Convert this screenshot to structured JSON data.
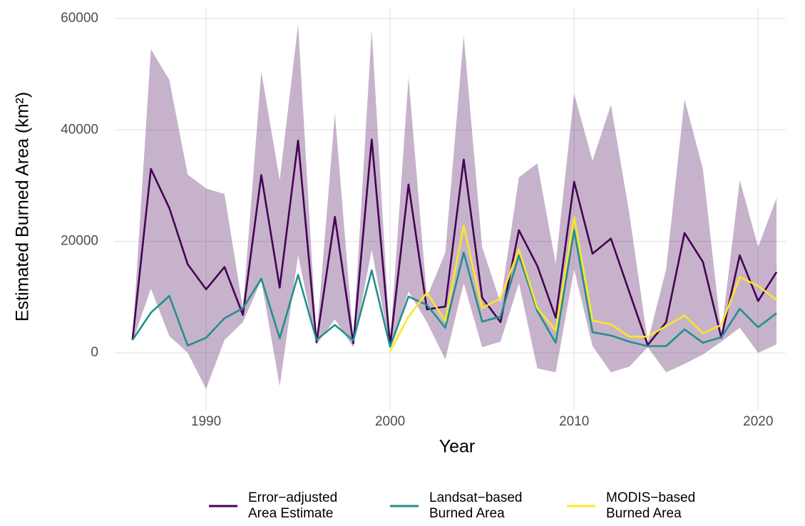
{
  "chart_data": {
    "type": "line",
    "x_label": "Year",
    "y_label": "Estimated Burned Area (km²)",
    "x": [
      1986,
      1987,
      1988,
      1989,
      1990,
      1991,
      1992,
      1993,
      1994,
      1995,
      1996,
      1997,
      1998,
      1999,
      2000,
      2001,
      2002,
      2003,
      2004,
      2005,
      2006,
      2007,
      2008,
      2009,
      2010,
      2011,
      2012,
      2013,
      2014,
      2015,
      2016,
      2017,
      2018,
      2019,
      2020,
      2021
    ],
    "xlim": [
      1985,
      2021.5
    ],
    "xticks": [
      1990,
      2000,
      2010,
      2020
    ],
    "ylim": [
      -10300,
      62000
    ],
    "yticks": [
      0,
      20000,
      40000,
      60000
    ],
    "grid": true,
    "legend": "bottom",
    "band": {
      "color": "#440154",
      "upper": [
        2600,
        54500,
        49000,
        32000,
        29500,
        28500,
        8000,
        50500,
        31000,
        59000,
        2500,
        43000,
        2500,
        58000,
        1800,
        49500,
        10000,
        18000,
        57000,
        19000,
        9000,
        31500,
        34000,
        16000,
        46500,
        34500,
        44500,
        25000,
        2000,
        15000,
        45500,
        33000,
        3500,
        31000,
        19000,
        27800
      ],
      "lower": [
        2000,
        11500,
        3000,
        0,
        -6500,
        2300,
        5500,
        13000,
        -6000,
        17500,
        1500,
        6000,
        1000,
        18500,
        800,
        11000,
        5500,
        -1200,
        12500,
        1000,
        2000,
        12500,
        -2800,
        -3500,
        15000,
        1200,
        -3500,
        -2500,
        1000,
        -3500,
        -2000,
        -300,
        2000,
        4500,
        0,
        1500
      ]
    },
    "series": [
      {
        "name": "Error−adjusted\nArea Estimate",
        "color": "#440154",
        "values": [
          2300,
          33000,
          26000,
          15900,
          11400,
          15400,
          6800,
          31900,
          11700,
          38100,
          1900,
          24400,
          1700,
          38300,
          1300,
          30200,
          7800,
          8300,
          34700,
          9900,
          5500,
          22000,
          15600,
          6300,
          30700,
          17800,
          20500,
          10900,
          1400,
          5500,
          21500,
          16300,
          2700,
          17500,
          9300,
          14500
        ]
      },
      {
        "name": "Landsat−based\nBurned Area",
        "color": "#21908C",
        "values": [
          2300,
          7200,
          10200,
          1300,
          2700,
          6200,
          8000,
          13300,
          2600,
          14000,
          2300,
          5000,
          2200,
          14800,
          1100,
          10100,
          8600,
          4500,
          18000,
          5600,
          6500,
          17500,
          7500,
          1800,
          22000,
          3700,
          3100,
          2000,
          1200,
          1200,
          4200,
          1800,
          2800,
          7900,
          4600,
          7100
        ]
      },
      {
        "name": "MODIS−based\nBurned Area",
        "color": "#FDE725",
        "values": [
          null,
          null,
          null,
          null,
          null,
          null,
          null,
          null,
          null,
          null,
          null,
          null,
          null,
          null,
          300,
          6500,
          10800,
          5700,
          22800,
          8000,
          9800,
          18500,
          8000,
          4000,
          24300,
          5800,
          5100,
          2900,
          2900,
          4800,
          6700,
          3500,
          5000,
          13600,
          12000,
          9500
        ]
      }
    ]
  }
}
